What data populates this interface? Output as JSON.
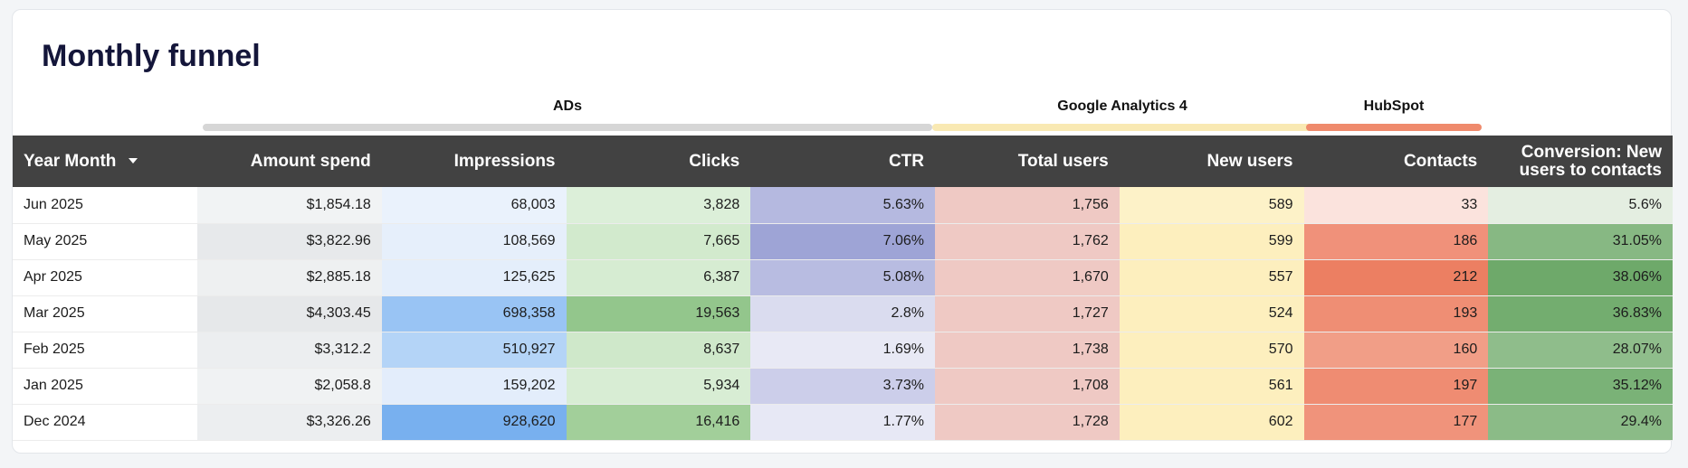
{
  "title": "Monthly funnel",
  "groups": [
    {
      "label": "ADs",
      "color": "#d6d6d6"
    },
    {
      "label": "Google Analytics 4",
      "color": "#f9e9b3"
    },
    {
      "label": "HubSpot",
      "color": "#ef8a6c"
    }
  ],
  "columns": [
    "Year Month",
    "Amount spend",
    "Impressions",
    "Clicks",
    "CTR",
    "Total users",
    "New users",
    "Contacts",
    "Conversion: New users to contacts"
  ],
  "rows": [
    {
      "cells": [
        "Jun 2025",
        "$1,854.18",
        "68,003",
        "3,828",
        "5.63%",
        "1,756",
        "589",
        "33",
        "5.6%"
      ],
      "colors": [
        "#ffffff",
        "#f1f3f4",
        "#eaf2fc",
        "#dcefd9",
        "#b5b9e0",
        "#efc9c4",
        "#fdf2c8",
        "#fbe3dd",
        "#e4eee1"
      ]
    },
    {
      "cells": [
        "May 2025",
        "$3,822.96",
        "108,569",
        "7,665",
        "7.06%",
        "1,762",
        "599",
        "186",
        "31.05%"
      ],
      "colors": [
        "#ffffff",
        "#e7e9eb",
        "#e6effb",
        "#d2eacd",
        "#9ea4d6",
        "#efc9c4",
        "#fdefbe",
        "#f0917a",
        "#87b883"
      ]
    },
    {
      "cells": [
        "Apr 2025",
        "$2,885.18",
        "125,625",
        "6,387",
        "5.08%",
        "1,670",
        "557",
        "212",
        "38.06%"
      ],
      "colors": [
        "#ffffff",
        "#eef0f1",
        "#e4eefb",
        "#d6ecd2",
        "#b8bce1",
        "#efc9c4",
        "#fdefbe",
        "#ec7f62",
        "#6ea96a"
      ]
    },
    {
      "cells": [
        "Mar 2025",
        "$4,303.45",
        "698,358",
        "19,563",
        "2.8%",
        "1,727",
        "524",
        "193",
        "36.83%"
      ],
      "colors": [
        "#ffffff",
        "#e6e8ea",
        "#99c4f4",
        "#93c68c",
        "#dadcef",
        "#efc9c4",
        "#fdefbe",
        "#ef8e74",
        "#73ad6f"
      ]
    },
    {
      "cells": [
        "Feb 2025",
        "$3,312.2",
        "510,927",
        "8,637",
        "1.69%",
        "1,738",
        "570",
        "160",
        "28.07%"
      ],
      "colors": [
        "#ffffff",
        "#eceef0",
        "#b4d4f7",
        "#cfe8ca",
        "#e8e9f5",
        "#efc9c4",
        "#fdefbe",
        "#f19e87",
        "#8fbd8b"
      ]
    },
    {
      "cells": [
        "Jan 2025",
        "$2,058.8",
        "159,202",
        "5,934",
        "3.73%",
        "1,708",
        "561",
        "197",
        "35.12%"
      ],
      "colors": [
        "#ffffff",
        "#f0f2f3",
        "#e3edfb",
        "#d8edd4",
        "#ccceea",
        "#efc9c4",
        "#fdefbe",
        "#ef8c72",
        "#7ab277"
      ]
    },
    {
      "cells": [
        "Dec 2024",
        "$3,326.26",
        "928,620",
        "16,416",
        "1.77%",
        "1,728",
        "602",
        "177",
        "29.4%"
      ],
      "colors": [
        "#ffffff",
        "#eceef0",
        "#78b0ef",
        "#a2cf9a",
        "#e7e8f5",
        "#efc9c4",
        "#fdefbe",
        "#f0937b",
        "#8bbb87"
      ]
    }
  ]
}
